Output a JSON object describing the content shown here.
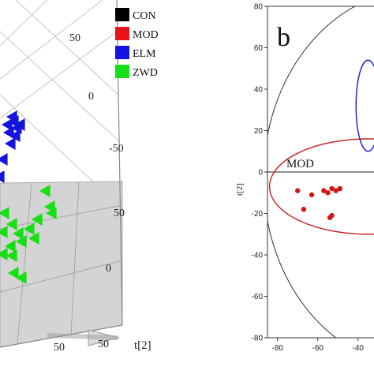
{
  "chart_data": [
    {
      "panel": "a",
      "type": "scatter",
      "projection": "3d",
      "legend": {
        "placement": "top-right",
        "entries": [
          {
            "label": "CON",
            "color": "#000000"
          },
          {
            "label": "MOD",
            "color": "#e8141c"
          },
          {
            "label": "ELM",
            "color": "#1414e0"
          },
          {
            "label": "ZWD",
            "color": "#14e014"
          }
        ]
      },
      "tick_labels": {
        "right_axis": [
          "50",
          "0",
          "-50"
        ],
        "lower_axis": [
          "50",
          "0"
        ],
        "bottom_axis": [
          "50",
          "50"
        ]
      },
      "axis_label": "t[2]",
      "marker": "triangle",
      "series": [
        {
          "name": "ELM",
          "color": "#1414e0",
          "points": [
            [
              16,
              148
            ],
            [
              22,
              162
            ],
            [
              12,
              168
            ],
            [
              20,
              172
            ],
            [
              26,
              158
            ],
            [
              14,
              182
            ],
            [
              4,
              202
            ],
            [
              0,
              224
            ],
            [
              18,
              154
            ],
            [
              10,
              158
            ]
          ]
        },
        {
          "name": "ZWD",
          "color": "#14e014",
          "points": [
            [
              58,
              242
            ],
            [
              64,
              262
            ],
            [
              66,
              270
            ],
            [
              48,
              278
            ],
            [
              6,
              270
            ],
            [
              16,
              284
            ],
            [
              24,
              296
            ],
            [
              44,
              302
            ],
            [
              28,
              306
            ],
            [
              14,
              312
            ],
            [
              4,
              322
            ],
            [
              16,
              324
            ],
            [
              18,
              346
            ],
            [
              28,
              352
            ],
            [
              4,
              294
            ],
            [
              38,
              290
            ]
          ]
        }
      ]
    },
    {
      "panel": "b",
      "type": "scatter",
      "panel_label": "b",
      "ylabel": "t[2]",
      "xlim": [
        -85,
        -35
      ],
      "ylim": [
        -80,
        80
      ],
      "x_ticks": [
        "-80",
        "-60",
        "-40"
      ],
      "y_ticks": [
        "80",
        "60",
        "40",
        "20",
        "0",
        "-20",
        "-40",
        "-60",
        "-80"
      ],
      "annotation": "MOD",
      "series": [
        {
          "name": "MOD",
          "color": "#d41414",
          "marker": "circle",
          "points": [
            [
              -70,
              -9
            ],
            [
              -63,
              -11
            ],
            [
              -57,
              -9
            ],
            [
              -55,
              -10
            ],
            [
              -53,
              -8
            ],
            [
              -51,
              -9
            ],
            [
              -49,
              -8
            ],
            [
              -67,
              -18
            ],
            [
              -54,
              -22
            ],
            [
              -53,
              -21
            ]
          ]
        }
      ],
      "ellipses": [
        {
          "label": "MOD",
          "color": "#c81e1e",
          "center": [
            -35,
            -7
          ],
          "rx": 49,
          "ry": 23
        },
        {
          "label": "ELM",
          "color": "#1a1acc",
          "center": [
            -35,
            32
          ],
          "rx": 6,
          "ry": 22
        }
      ],
      "confidence_ellipse": {
        "center": [
          -10,
          -3
        ],
        "rx": 77,
        "ry": 91
      }
    }
  ]
}
